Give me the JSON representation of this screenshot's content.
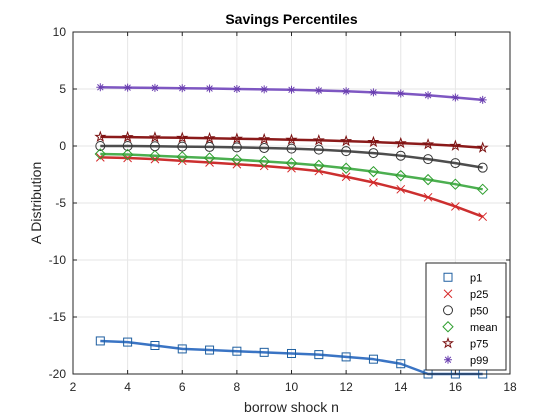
{
  "chart_data": {
    "type": "line",
    "title": "Savings Percentiles",
    "xlabel": "borrow shock n",
    "ylabel": "A Distribution",
    "xlim": [
      2,
      18
    ],
    "ylim": [
      -20,
      10
    ],
    "xticks": [
      2,
      4,
      6,
      8,
      10,
      12,
      14,
      16,
      18
    ],
    "yticks": [
      -20,
      -15,
      -10,
      -5,
      0,
      5,
      10
    ],
    "grid": true,
    "legend_position": "bottom-right",
    "x": [
      3,
      4,
      5,
      6,
      7,
      8,
      9,
      10,
      11,
      12,
      13,
      14,
      15,
      16,
      17
    ],
    "series": [
      {
        "name": "p1",
        "marker": "square",
        "line_color": "#3a74c4",
        "marker_color": "#1f5fa0",
        "values": [
          -17.1,
          -17.2,
          -17.5,
          -17.8,
          -17.9,
          -18.0,
          -18.1,
          -18.2,
          -18.3,
          -18.5,
          -18.7,
          -19.1,
          -20.0,
          -20.0,
          -20.0
        ]
      },
      {
        "name": "p25",
        "marker": "x",
        "line_color": "#cc2f2f",
        "marker_color": "#d62728",
        "values": [
          -1.0,
          -1.05,
          -1.15,
          -1.3,
          -1.45,
          -1.6,
          -1.75,
          -1.95,
          -2.2,
          -2.7,
          -3.2,
          -3.8,
          -4.5,
          -5.3,
          -6.2
        ]
      },
      {
        "name": "p50",
        "marker": "circle",
        "line_color": "#4d4d4d",
        "marker_color": "#333333",
        "values": [
          0.0,
          0.0,
          -0.02,
          -0.05,
          -0.08,
          -0.12,
          -0.17,
          -0.23,
          -0.32,
          -0.45,
          -0.62,
          -0.85,
          -1.15,
          -1.5,
          -1.9
        ]
      },
      {
        "name": "mean",
        "marker": "diamond",
        "line_color": "#4caf50",
        "marker_color": "#2e9e2e",
        "values": [
          -0.7,
          -0.75,
          -0.85,
          -0.95,
          -1.05,
          -1.2,
          -1.35,
          -1.5,
          -1.7,
          -1.95,
          -2.25,
          -2.6,
          -2.95,
          -3.35,
          -3.8
        ]
      },
      {
        "name": "p75",
        "marker": "pentagram",
        "line_color": "#8b1a1a",
        "marker_color": "#7a1010",
        "values": [
          0.8,
          0.78,
          0.75,
          0.72,
          0.68,
          0.64,
          0.6,
          0.55,
          0.5,
          0.43,
          0.35,
          0.25,
          0.15,
          0.02,
          -0.15
        ]
      },
      {
        "name": "p99",
        "marker": "asterisk",
        "line_color": "#7e57c2",
        "marker_color": "#6a3fb0",
        "values": [
          5.15,
          5.12,
          5.1,
          5.07,
          5.04,
          5.0,
          4.97,
          4.93,
          4.87,
          4.8,
          4.7,
          4.6,
          4.45,
          4.25,
          4.05
        ]
      }
    ]
  }
}
